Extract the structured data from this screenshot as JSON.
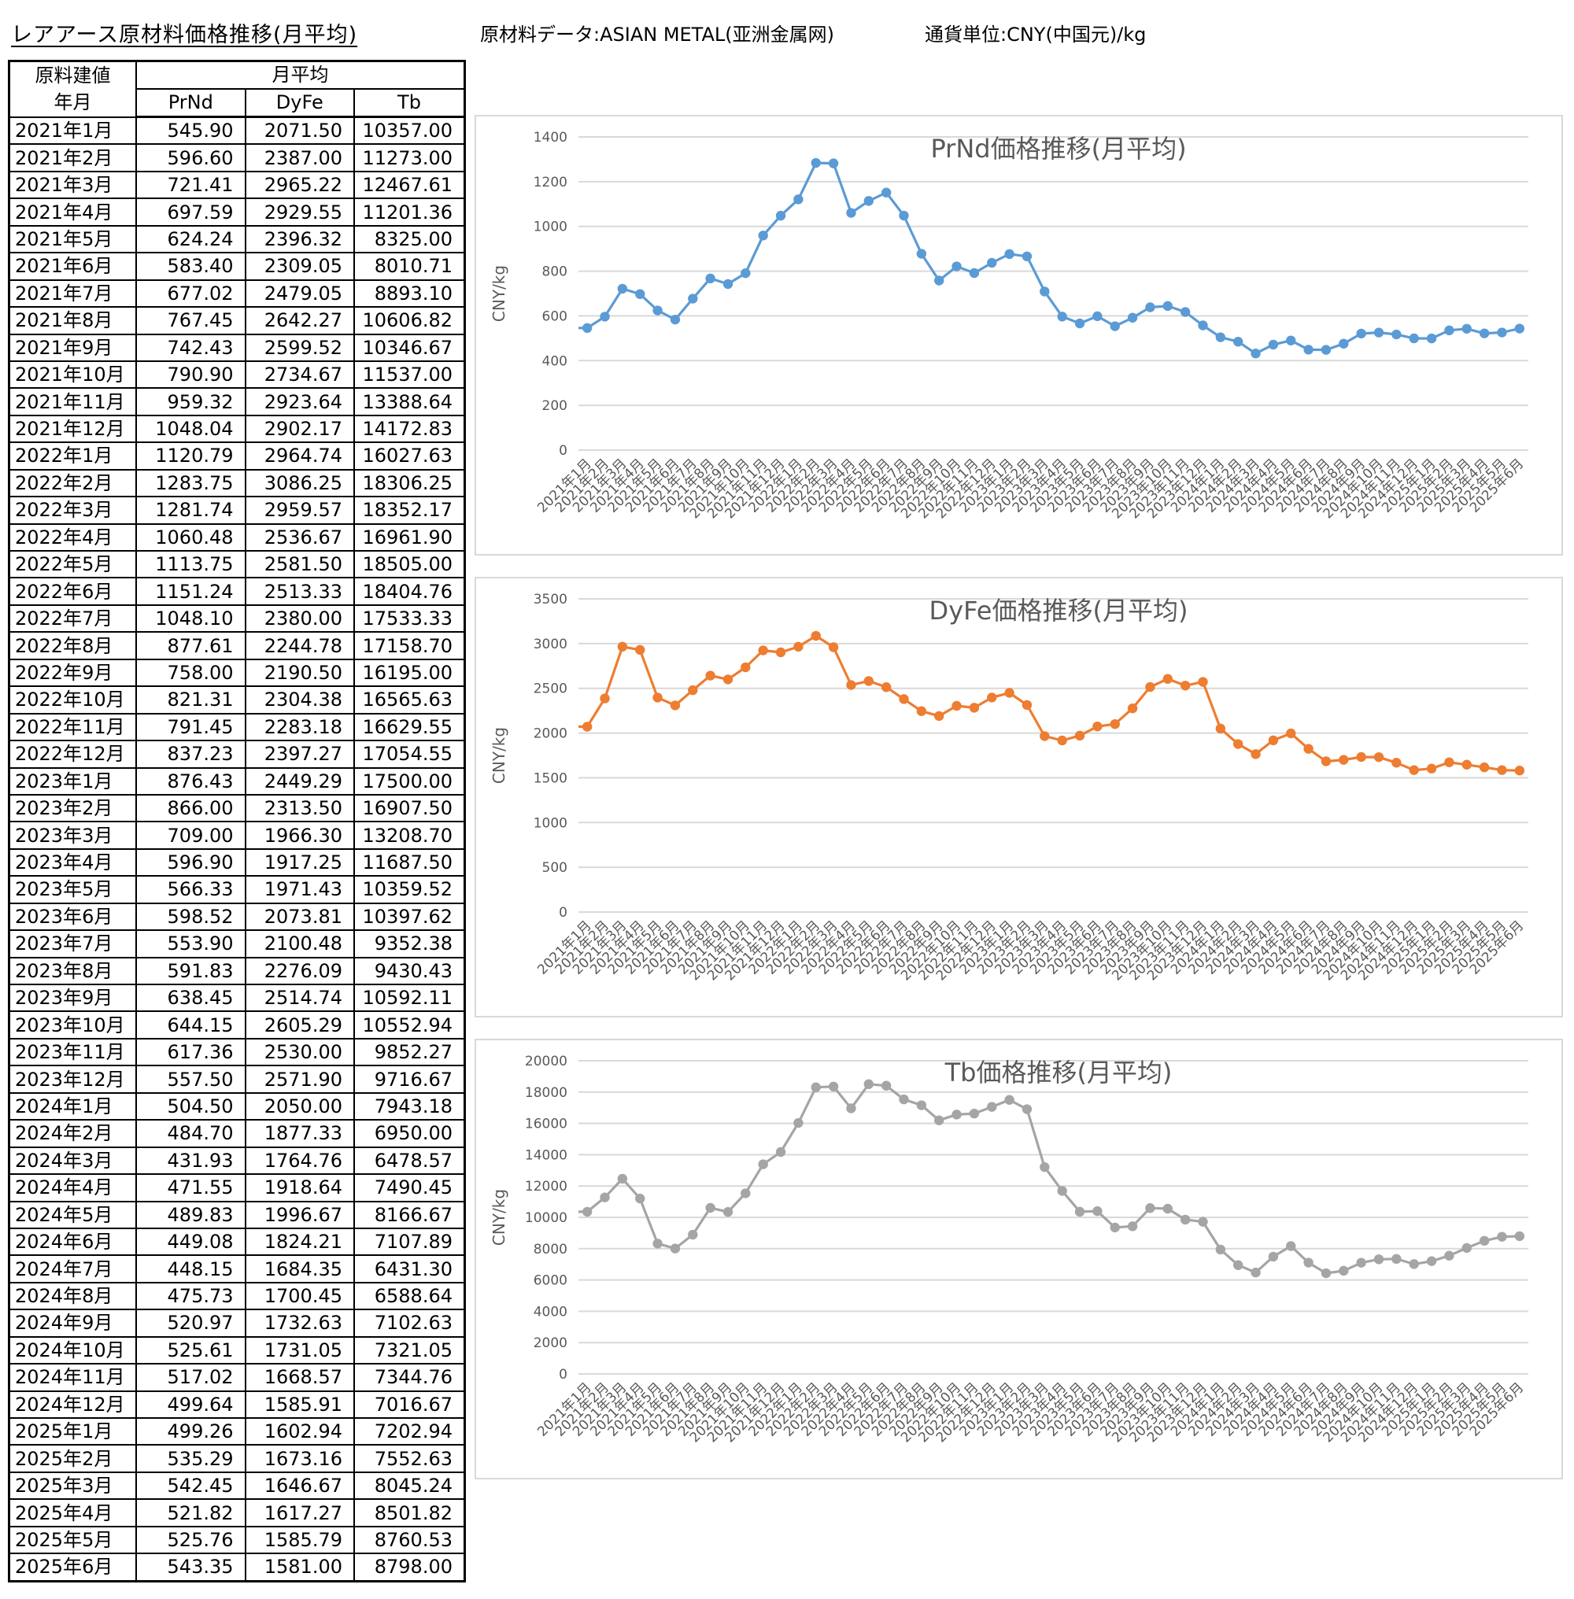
{
  "header": {
    "title": "レアアース原材料価格推移(月平均)",
    "source": "原材料データ:ASIAN METAL(亚洲金属网)",
    "currency": "通貨単位:CNY(中国元)/kg"
  },
  "table": {
    "head_line1": "原料建値",
    "head_line2": "年月",
    "group_header": "月平均",
    "columns": [
      "PrNd",
      "DyFe",
      "Tb"
    ],
    "rows": [
      {
        "month": "2021年1月",
        "prnd": "545.90",
        "dyfe": "2071.50",
        "tb": "10357.00"
      },
      {
        "month": "2021年2月",
        "prnd": "596.60",
        "dyfe": "2387.00",
        "tb": "11273.00"
      },
      {
        "month": "2021年3月",
        "prnd": "721.41",
        "dyfe": "2965.22",
        "tb": "12467.61"
      },
      {
        "month": "2021年4月",
        "prnd": "697.59",
        "dyfe": "2929.55",
        "tb": "11201.36"
      },
      {
        "month": "2021年5月",
        "prnd": "624.24",
        "dyfe": "2396.32",
        "tb": "8325.00"
      },
      {
        "month": "2021年6月",
        "prnd": "583.40",
        "dyfe": "2309.05",
        "tb": "8010.71"
      },
      {
        "month": "2021年7月",
        "prnd": "677.02",
        "dyfe": "2479.05",
        "tb": "8893.10"
      },
      {
        "month": "2021年8月",
        "prnd": "767.45",
        "dyfe": "2642.27",
        "tb": "10606.82"
      },
      {
        "month": "2021年9月",
        "prnd": "742.43",
        "dyfe": "2599.52",
        "tb": "10346.67"
      },
      {
        "month": "2021年10月",
        "prnd": "790.90",
        "dyfe": "2734.67",
        "tb": "11537.00"
      },
      {
        "month": "2021年11月",
        "prnd": "959.32",
        "dyfe": "2923.64",
        "tb": "13388.64"
      },
      {
        "month": "2021年12月",
        "prnd": "1048.04",
        "dyfe": "2902.17",
        "tb": "14172.83"
      },
      {
        "month": "2022年1月",
        "prnd": "1120.79",
        "dyfe": "2964.74",
        "tb": "16027.63"
      },
      {
        "month": "2022年2月",
        "prnd": "1283.75",
        "dyfe": "3086.25",
        "tb": "18306.25"
      },
      {
        "month": "2022年3月",
        "prnd": "1281.74",
        "dyfe": "2959.57",
        "tb": "18352.17"
      },
      {
        "month": "2022年4月",
        "prnd": "1060.48",
        "dyfe": "2536.67",
        "tb": "16961.90"
      },
      {
        "month": "2022年5月",
        "prnd": "1113.75",
        "dyfe": "2581.50",
        "tb": "18505.00"
      },
      {
        "month": "2022年6月",
        "prnd": "1151.24",
        "dyfe": "2513.33",
        "tb": "18404.76"
      },
      {
        "month": "2022年7月",
        "prnd": "1048.10",
        "dyfe": "2380.00",
        "tb": "17533.33"
      },
      {
        "month": "2022年8月",
        "prnd": "877.61",
        "dyfe": "2244.78",
        "tb": "17158.70"
      },
      {
        "month": "2022年9月",
        "prnd": "758.00",
        "dyfe": "2190.50",
        "tb": "16195.00"
      },
      {
        "month": "2022年10月",
        "prnd": "821.31",
        "dyfe": "2304.38",
        "tb": "16565.63"
      },
      {
        "month": "2022年11月",
        "prnd": "791.45",
        "dyfe": "2283.18",
        "tb": "16629.55"
      },
      {
        "month": "2022年12月",
        "prnd": "837.23",
        "dyfe": "2397.27",
        "tb": "17054.55"
      },
      {
        "month": "2023年1月",
        "prnd": "876.43",
        "dyfe": "2449.29",
        "tb": "17500.00"
      },
      {
        "month": "2023年2月",
        "prnd": "866.00",
        "dyfe": "2313.50",
        "tb": "16907.50"
      },
      {
        "month": "2023年3月",
        "prnd": "709.00",
        "dyfe": "1966.30",
        "tb": "13208.70"
      },
      {
        "month": "2023年4月",
        "prnd": "596.90",
        "dyfe": "1917.25",
        "tb": "11687.50"
      },
      {
        "month": "2023年5月",
        "prnd": "566.33",
        "dyfe": "1971.43",
        "tb": "10359.52"
      },
      {
        "month": "2023年6月",
        "prnd": "598.52",
        "dyfe": "2073.81",
        "tb": "10397.62"
      },
      {
        "month": "2023年7月",
        "prnd": "553.90",
        "dyfe": "2100.48",
        "tb": "9352.38"
      },
      {
        "month": "2023年8月",
        "prnd": "591.83",
        "dyfe": "2276.09",
        "tb": "9430.43"
      },
      {
        "month": "2023年9月",
        "prnd": "638.45",
        "dyfe": "2514.74",
        "tb": "10592.11"
      },
      {
        "month": "2023年10月",
        "prnd": "644.15",
        "dyfe": "2605.29",
        "tb": "10552.94"
      },
      {
        "month": "2023年11月",
        "prnd": "617.36",
        "dyfe": "2530.00",
        "tb": "9852.27"
      },
      {
        "month": "2023年12月",
        "prnd": "557.50",
        "dyfe": "2571.90",
        "tb": "9716.67"
      },
      {
        "month": "2024年1月",
        "prnd": "504.50",
        "dyfe": "2050.00",
        "tb": "7943.18"
      },
      {
        "month": "2024年2月",
        "prnd": "484.70",
        "dyfe": "1877.33",
        "tb": "6950.00"
      },
      {
        "month": "2024年3月",
        "prnd": "431.93",
        "dyfe": "1764.76",
        "tb": "6478.57"
      },
      {
        "month": "2024年4月",
        "prnd": "471.55",
        "dyfe": "1918.64",
        "tb": "7490.45"
      },
      {
        "month": "2024年5月",
        "prnd": "489.83",
        "dyfe": "1996.67",
        "tb": "8166.67"
      },
      {
        "month": "2024年6月",
        "prnd": "449.08",
        "dyfe": "1824.21",
        "tb": "7107.89"
      },
      {
        "month": "2024年7月",
        "prnd": "448.15",
        "dyfe": "1684.35",
        "tb": "6431.30"
      },
      {
        "month": "2024年8月",
        "prnd": "475.73",
        "dyfe": "1700.45",
        "tb": "6588.64"
      },
      {
        "month": "2024年9月",
        "prnd": "520.97",
        "dyfe": "1732.63",
        "tb": "7102.63"
      },
      {
        "month": "2024年10月",
        "prnd": "525.61",
        "dyfe": "1731.05",
        "tb": "7321.05"
      },
      {
        "month": "2024年11月",
        "prnd": "517.02",
        "dyfe": "1668.57",
        "tb": "7344.76"
      },
      {
        "month": "2024年12月",
        "prnd": "499.64",
        "dyfe": "1585.91",
        "tb": "7016.67"
      },
      {
        "month": "2025年1月",
        "prnd": "499.26",
        "dyfe": "1602.94",
        "tb": "7202.94"
      },
      {
        "month": "2025年2月",
        "prnd": "535.29",
        "dyfe": "1673.16",
        "tb": "7552.63"
      },
      {
        "month": "2025年3月",
        "prnd": "542.45",
        "dyfe": "1646.67",
        "tb": "8045.24"
      },
      {
        "month": "2025年4月",
        "prnd": "521.82",
        "dyfe": "1617.27",
        "tb": "8501.82"
      },
      {
        "month": "2025年5月",
        "prnd": "525.76",
        "dyfe": "1585.79",
        "tb": "8760.53"
      },
      {
        "month": "2025年6月",
        "prnd": "543.35",
        "dyfe": "1581.00",
        "tb": "8798.00"
      }
    ]
  },
  "chart_data": [
    {
      "type": "line",
      "title": "PrNd価格推移(月平均)",
      "ylabel": "CNY/kg",
      "ylim": [
        0,
        1400
      ],
      "yticks": [
        0,
        200,
        400,
        600,
        800,
        1000,
        1200,
        1400
      ],
      "color": "#5b9bd5",
      "series_key": "prnd",
      "grid": true
    },
    {
      "type": "line",
      "title": "DyFe価格推移(月平均)",
      "ylabel": "CNY/kg",
      "ylim": [
        0,
        3500
      ],
      "yticks": [
        0,
        500,
        1000,
        1500,
        2000,
        2500,
        3000,
        3500
      ],
      "color": "#ed7d31",
      "series_key": "dyfe",
      "grid": true
    },
    {
      "type": "line",
      "title": "Tb価格推移(月平均)",
      "ylabel": "CNY/kg",
      "ylim": [
        0,
        20000
      ],
      "yticks": [
        0,
        2000,
        4000,
        6000,
        8000,
        10000,
        12000,
        14000,
        16000,
        18000,
        20000
      ],
      "color": "#a5a5a5",
      "series_key": "tb",
      "grid": true
    }
  ]
}
